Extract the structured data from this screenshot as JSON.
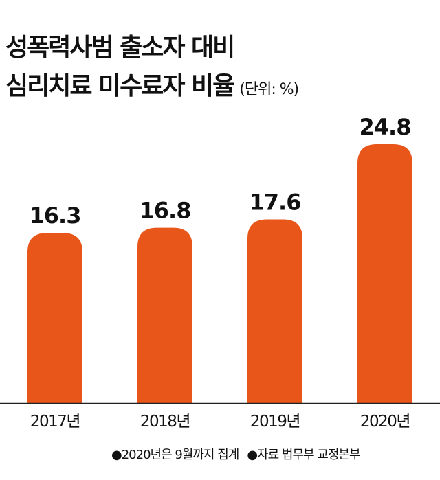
{
  "title_line1": "성폭력사범 출소자 대비",
  "title_line2": "심리치료 미수료자 비율",
  "unit": "(단위: %)",
  "footnotes": [
    "●2020년은 9월까지 집계",
    "●자료 법무부 교정본부"
  ],
  "colors": {
    "bar": "#E8561A",
    "axis": "#222222"
  },
  "chart_data": {
    "type": "bar",
    "title": "성폭력사범 출소자 대비 심리치료 미수료자 비율",
    "categories": [
      "2017년",
      "2018년",
      "2019년",
      "2020년"
    ],
    "values": [
      16.3,
      16.8,
      17.6,
      24.8
    ],
    "value_labels": [
      "16.3",
      "16.8",
      "17.6",
      "24.8"
    ],
    "ylabel": "%",
    "ylim": [
      0,
      24.8
    ],
    "grid": false
  }
}
